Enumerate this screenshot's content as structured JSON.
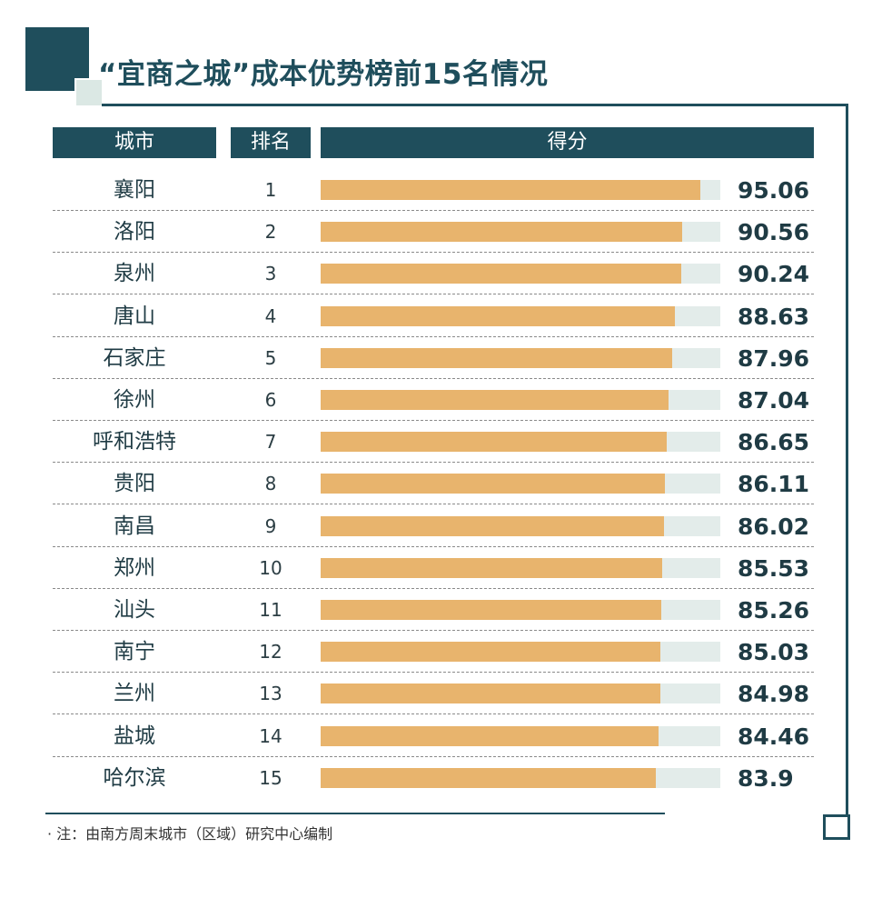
{
  "title": "“宜商之城”成本优势榜前15名情况",
  "headers": {
    "city": "城市",
    "rank": "排名",
    "score": "得分"
  },
  "note": "· 注：由南方周末城市（区域）研究中心编制",
  "colors": {
    "primary": "#1f4e5c",
    "bar": "#e8b46d",
    "track": "#e3ecea"
  },
  "chart_data": {
    "type": "bar",
    "orientation": "horizontal",
    "title": "“宜商之城”成本优势榜前15名情况",
    "xlim": [
      0,
      100
    ],
    "rows": [
      {
        "city": "襄阳",
        "rank": "1",
        "value": 95.06,
        "label": "95.06"
      },
      {
        "city": "洛阳",
        "rank": "2",
        "value": 90.56,
        "label": "90.56"
      },
      {
        "city": "泉州",
        "rank": "3",
        "value": 90.24,
        "label": "90.24"
      },
      {
        "city": "唐山",
        "rank": "4",
        "value": 88.63,
        "label": "88.63"
      },
      {
        "city": "石家庄",
        "rank": "5",
        "value": 87.96,
        "label": "87.96"
      },
      {
        "city": "徐州",
        "rank": "6",
        "value": 87.04,
        "label": "87.04"
      },
      {
        "city": "呼和浩特",
        "rank": "7",
        "value": 86.65,
        "label": "86.65"
      },
      {
        "city": "贵阳",
        "rank": "8",
        "value": 86.11,
        "label": "86.11"
      },
      {
        "city": "南昌",
        "rank": "9",
        "value": 86.02,
        "label": "86.02"
      },
      {
        "city": "郑州",
        "rank": "10",
        "value": 85.53,
        "label": "85.53"
      },
      {
        "city": "汕头",
        "rank": "11",
        "value": 85.26,
        "label": "85.26"
      },
      {
        "city": "南宁",
        "rank": "12",
        "value": 85.03,
        "label": "85.03"
      },
      {
        "city": "兰州",
        "rank": "13",
        "value": 84.98,
        "label": "84.98"
      },
      {
        "city": "盐城",
        "rank": "14",
        "value": 84.46,
        "label": "84.46"
      },
      {
        "city": "哈尔滨",
        "rank": "15",
        "value": 83.9,
        "label": "83.9"
      }
    ]
  }
}
